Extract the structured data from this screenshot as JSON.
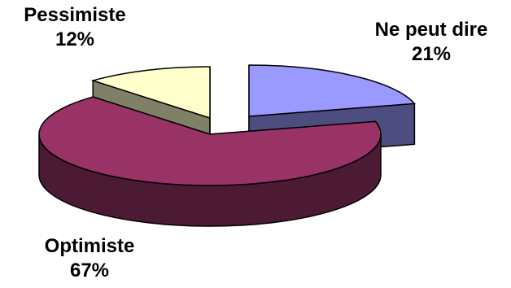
{
  "chart_data": {
    "type": "pie",
    "style": "3d-exploded",
    "slices": [
      {
        "name": "Ne peut dire",
        "value": 21,
        "label": "21%",
        "color": "#9999ff",
        "side_color": "#4d4d80"
      },
      {
        "name": "Optimiste",
        "value": 67,
        "label": "67%",
        "color": "#993366",
        "side_color": "#4d1a33"
      },
      {
        "name": "Pessimiste",
        "value": 12,
        "label": "12%",
        "color": "#ffffcc",
        "side_color": "#808066"
      }
    ],
    "legend": "none"
  }
}
